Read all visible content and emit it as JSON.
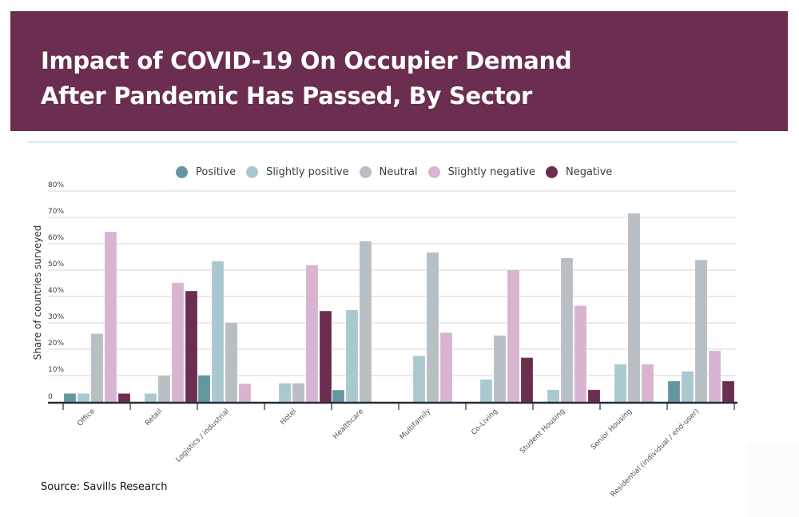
{
  "header": {
    "title_line1": "Impact of COVID-19 On Occupier Demand",
    "title_line2": "After Pandemic Has Passed, By Sector"
  },
  "source": "Source: Savills Research",
  "colors": {
    "header_bg": "#6b2d50",
    "positive": "#63979f",
    "slightly_positive": "#a9c9ce",
    "neutral": "#b7bec4",
    "slightly_negative": "#d8b4d0",
    "negative": "#6b2d50"
  },
  "chart_data": {
    "type": "bar",
    "title": "Impact of COVID-19 On Occupier Demand After Pandemic Has Passed, By Sector",
    "xlabel": "",
    "ylabel": "Share of countries surveyed",
    "ylim": [
      0,
      80
    ],
    "yticks": [
      0,
      10,
      20,
      30,
      40,
      50,
      60,
      70,
      80
    ],
    "ytick_labels": [
      "0",
      "10%",
      "20%",
      "30%",
      "40%",
      "50%",
      "60%",
      "70%",
      "80%"
    ],
    "grid": true,
    "legend_position": "top-center",
    "categories": [
      "Office",
      "Retail",
      "Logistics / industrial",
      "Hotel",
      "Healthcare",
      "Multifamily",
      "Co-Living",
      "Student Housing",
      "Senior Housing",
      "Residential (individual / end-user)"
    ],
    "series": [
      {
        "name": "Positive",
        "color": "#63979f",
        "values": [
          3.2,
          0,
          10.1,
          0,
          4.5,
          0,
          0,
          0,
          0,
          7.9
        ]
      },
      {
        "name": "Slightly positive",
        "color": "#a9c9ce",
        "values": [
          3.2,
          3.2,
          53.4,
          7.1,
          34.9,
          17.5,
          8.5,
          4.6,
          14.3,
          11.6
        ]
      },
      {
        "name": "Neutral",
        "color": "#b7bec4",
        "values": [
          25.9,
          9.9,
          30.1,
          7.1,
          61.0,
          56.7,
          25.2,
          54.6,
          71.5,
          53.9
        ]
      },
      {
        "name": "Slightly negative",
        "color": "#d8b4d0",
        "values": [
          64.5,
          45.2,
          6.9,
          51.9,
          0,
          26.3,
          50.1,
          36.5,
          14.3,
          19.4
        ]
      },
      {
        "name": "Negative",
        "color": "#6b2d50",
        "values": [
          3.2,
          42.1,
          0,
          34.5,
          0,
          0,
          16.8,
          4.6,
          0,
          7.9
        ]
      }
    ]
  }
}
